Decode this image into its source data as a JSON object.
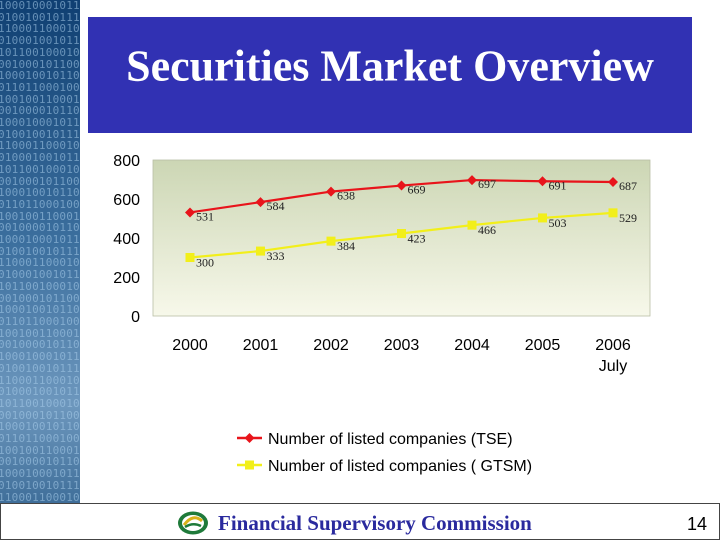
{
  "slide": {
    "title": "Securities Market Overview",
    "footer": "Financial Supervisory Commission",
    "page_number": "14"
  },
  "colors": {
    "title_bg": "#3131b3",
    "plot_bg_top": "#ccd6b4",
    "plot_bg_bottom": "#f7f8ea",
    "tse_series": "#e8141b",
    "gtsm_series": "#f2ef1a",
    "footer_text": "#2a2a9e"
  },
  "chart_data": {
    "type": "line",
    "categories": [
      "2000",
      "2001",
      "2002",
      "2003",
      "2004",
      "2005",
      "2006\nJuly"
    ],
    "series": [
      {
        "name": "Number of listed companies (TSE)",
        "values": [
          531,
          584,
          638,
          669,
          697,
          691,
          687
        ],
        "color": "#e8141b",
        "marker": "diamond"
      },
      {
        "name": "Number of listed companies ( GTSM)",
        "values": [
          300,
          333,
          384,
          423,
          466,
          503,
          529
        ],
        "color": "#f2ef1a",
        "marker": "square"
      }
    ],
    "ylim": [
      0,
      800
    ],
    "yticks": [
      0,
      200,
      400,
      600,
      800
    ],
    "data_labels": true,
    "grid": false,
    "legend": "bottom",
    "title": "",
    "xlabel": "",
    "ylabel": ""
  }
}
